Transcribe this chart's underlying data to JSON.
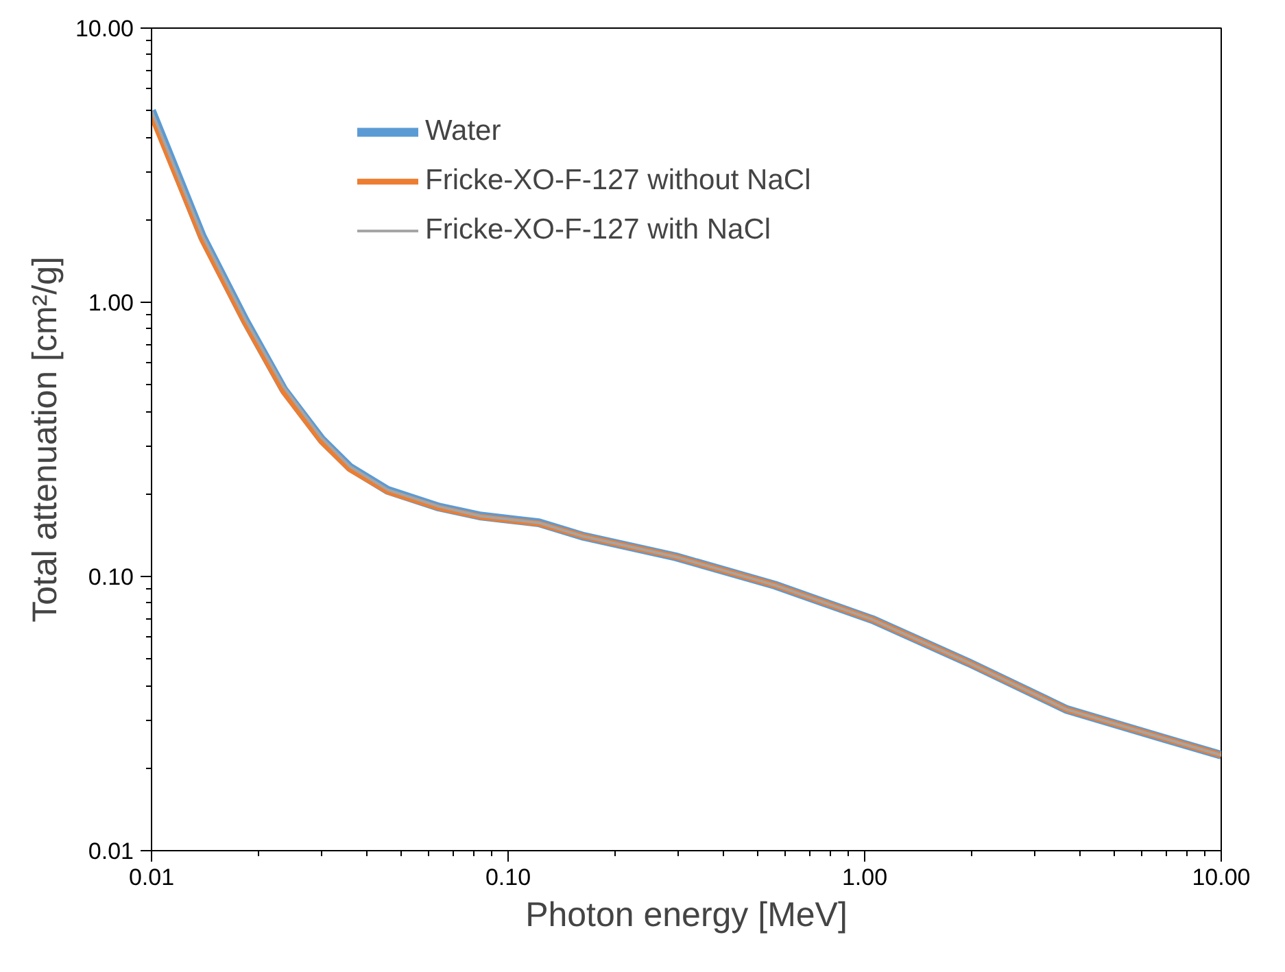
{
  "chart_data": {
    "type": "line",
    "xlabel": "Photon energy [MeV]",
    "ylabel": "Total attenuation [cm²/g]",
    "log": "xy",
    "grid": false,
    "legend": "top left",
    "xlim": [
      0.01,
      10
    ],
    "ylim": [
      0.01,
      10
    ],
    "xticks": [
      {
        "value": 0.01,
        "label": "0.01"
      },
      {
        "value": 0.1,
        "label": "0.10"
      },
      {
        "value": 1,
        "label": "1.00"
      },
      {
        "value": 10,
        "label": "10.00"
      }
    ],
    "yticks": [
      {
        "value": 0.01,
        "label": "0.01"
      },
      {
        "value": 0.1,
        "label": "0.10"
      },
      {
        "value": 1,
        "label": "1.00"
      },
      {
        "value": 10,
        "label": "10.00"
      }
    ],
    "x": [
      0.01,
      0.0139,
      0.0183,
      0.0235,
      0.03,
      0.036,
      0.046,
      0.064,
      0.084,
      0.122,
      0.163,
      0.295,
      0.56,
      1.05,
      1.95,
      3.69,
      6.9,
      10
    ],
    "series": [
      {
        "name": "Water",
        "color": "#5b9bd5",
        "values": [
          5.0,
          1.73,
          0.86,
          0.48,
          0.316,
          0.25,
          0.206,
          0.179,
          0.166,
          0.157,
          0.14,
          0.118,
          0.093,
          0.0697,
          0.0486,
          0.0327,
          0.0257,
          0.0223
        ]
      },
      {
        "name": "Fricke-XO-F-127 without NaCl",
        "color": "#ed7d31",
        "values": [
          4.8,
          1.68,
          0.84,
          0.47,
          0.31,
          0.246,
          0.204,
          0.178,
          0.165,
          0.156,
          0.14,
          0.118,
          0.093,
          0.0697,
          0.0486,
          0.0327,
          0.0257,
          0.0223
        ]
      },
      {
        "name": "Fricke-XO-F-127 with NaCl",
        "color": "#a5a5a5",
        "values": [
          5.0,
          1.75,
          0.87,
          0.49,
          0.32,
          0.252,
          0.207,
          0.18,
          0.166,
          0.157,
          0.14,
          0.118,
          0.093,
          0.0697,
          0.0486,
          0.0327,
          0.0257,
          0.0223
        ]
      }
    ]
  }
}
